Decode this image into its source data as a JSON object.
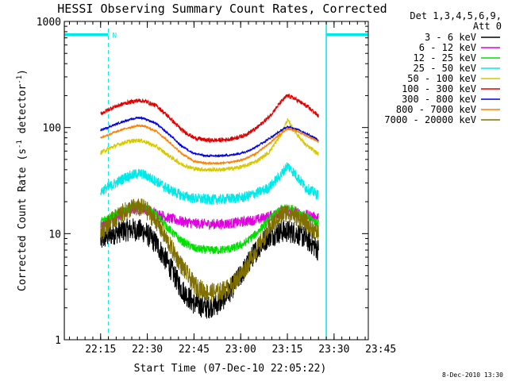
{
  "chart_data": {
    "type": "line",
    "title": "HESSI Observing Summary Count Rates, Corrected",
    "xlabel": "Start Time (07-Dec-10 22:05:22)",
    "ylabel_main": "Corrected Count Rate (s",
    "ylabel_sup1": "-1",
    "ylabel_mid": " detector",
    "ylabel_sup2": "-1",
    "ylabel_end": ")",
    "y_scale": "log",
    "xlim": [
      8.33,
      106
    ],
    "ylim": [
      1,
      1000
    ],
    "x_ticks": [
      {
        "value": 20,
        "label": "22:15"
      },
      {
        "value": 35,
        "label": "22:30"
      },
      {
        "value": 50,
        "label": "22:45"
      },
      {
        "value": 65,
        "label": "23:00"
      },
      {
        "value": 80,
        "label": "23:15"
      },
      {
        "value": 95,
        "label": "23:30"
      },
      {
        "value": 110,
        "label": "23:45"
      }
    ],
    "y_ticks": [
      {
        "value": 1,
        "label": "1"
      },
      {
        "value": 10,
        "label": "10"
      },
      {
        "value": 100,
        "label": "100"
      },
      {
        "value": 1000,
        "label": "1000"
      }
    ],
    "x_minor_step": 2.5,
    "legend_position": "right",
    "legend_header": [
      "Det 1,3,4,5,6,9,",
      "Att 0"
    ],
    "footer_date": "8-Dec-2010 13:30",
    "night_flag_label": "N",
    "series": [
      {
        "name": "3 - 6 keV",
        "color": "#000000",
        "noise": 0.11,
        "x": [
          20,
          22,
          26,
          30,
          34,
          38,
          42,
          46,
          50,
          54,
          58,
          62,
          66,
          70,
          74,
          78,
          80,
          82,
          84,
          86,
          88,
          90
        ],
        "y": [
          8.5,
          9.5,
          10.5,
          11,
          10.5,
          8,
          5,
          3,
          2.2,
          2,
          2.2,
          3,
          4.5,
          7,
          9.5,
          10.5,
          10.5,
          10.3,
          9.8,
          9,
          8,
          7
        ]
      },
      {
        "name": "6 - 12 keV",
        "color": "#e000e0",
        "noise": 0.05,
        "x": [
          20,
          24,
          30,
          34,
          38,
          42,
          46,
          50,
          54,
          58,
          62,
          66,
          70,
          74,
          78,
          80,
          82,
          86,
          90
        ],
        "y": [
          12,
          14,
          17,
          17,
          15.5,
          14,
          13,
          12.5,
          12.3,
          12.3,
          12.5,
          13,
          13.5,
          14.5,
          16,
          16.5,
          16,
          15,
          14
        ]
      },
      {
        "name": "12 - 25 keV",
        "color": "#00e000",
        "noise": 0.04,
        "x": [
          20,
          24,
          30,
          34,
          38,
          42,
          46,
          50,
          54,
          58,
          62,
          66,
          70,
          74,
          78,
          80,
          82,
          86,
          90
        ],
        "y": [
          13,
          15,
          18,
          18,
          15,
          11,
          8.5,
          7.3,
          7,
          7,
          7.2,
          8,
          10,
          13.5,
          17,
          17.5,
          17,
          14.5,
          12.5
        ]
      },
      {
        "name": "25 - 50 keV",
        "color": "#00e8e8",
        "noise": 0.05,
        "x": [
          20,
          24,
          28,
          32,
          34,
          38,
          42,
          46,
          50,
          54,
          58,
          62,
          66,
          70,
          74,
          78,
          80,
          82,
          84,
          86,
          88,
          90
        ],
        "y": [
          25,
          29,
          34,
          37,
          36,
          31,
          26,
          23,
          21.5,
          21,
          21,
          21.5,
          22,
          24,
          27,
          36,
          44,
          38,
          32,
          27,
          25,
          23
        ]
      },
      {
        "name": "50 - 100 keV",
        "color": "#d8c800",
        "noise": 0.02,
        "x": [
          20,
          24,
          28,
          32,
          34,
          38,
          42,
          46,
          50,
          54,
          58,
          62,
          66,
          70,
          74,
          78,
          80,
          82,
          84,
          86,
          88,
          90
        ],
        "y": [
          58,
          66,
          73,
          76,
          74,
          66,
          54,
          45,
          41,
          40,
          40,
          41,
          43,
          48,
          58,
          86,
          118,
          96,
          80,
          68,
          62,
          56
        ]
      },
      {
        "name": "100 - 300 keV",
        "color": "#e00000",
        "noise": 0.02,
        "x": [
          20,
          24,
          28,
          32,
          34,
          38,
          42,
          46,
          50,
          54,
          58,
          62,
          66,
          70,
          74,
          78,
          80,
          82,
          84,
          86,
          88,
          90
        ],
        "y": [
          135,
          155,
          170,
          180,
          178,
          160,
          125,
          95,
          80,
          76,
          76,
          78,
          84,
          98,
          125,
          175,
          200,
          190,
          175,
          160,
          145,
          128
        ]
      },
      {
        "name": "300 - 800 keV",
        "color": "#0000e0",
        "noise": 0.01,
        "x": [
          20,
          24,
          28,
          32,
          34,
          38,
          42,
          46,
          50,
          54,
          58,
          62,
          66,
          70,
          74,
          78,
          80,
          82,
          84,
          86,
          88,
          90
        ],
        "y": [
          94,
          105,
          116,
          124,
          122,
          108,
          86,
          67,
          57,
          54,
          54,
          55,
          58,
          66,
          78,
          94,
          101,
          99,
          94,
          88,
          82,
          76
        ]
      },
      {
        "name": "800 - 7000 keV",
        "color": "#ff7f00",
        "noise": 0.01,
        "x": [
          20,
          24,
          28,
          32,
          34,
          38,
          42,
          46,
          50,
          54,
          58,
          62,
          66,
          70,
          74,
          78,
          80,
          82,
          84,
          86,
          88,
          90
        ],
        "y": [
          80,
          89,
          98,
          104,
          103,
          92,
          73,
          57,
          48,
          46,
          46,
          47,
          50,
          57,
          70,
          88,
          97,
          95,
          90,
          84,
          79,
          74
        ]
      },
      {
        "name": "7000 - 20000 keV",
        "color": "#807000",
        "noise": 0.09,
        "x": [
          20,
          22,
          26,
          30,
          34,
          38,
          42,
          46,
          50,
          54,
          58,
          62,
          66,
          70,
          74,
          78,
          80,
          82,
          86,
          90
        ],
        "y": [
          10,
          12,
          15,
          17.5,
          17.5,
          13,
          8,
          5,
          3.3,
          2.8,
          2.8,
          3.2,
          4.5,
          7,
          11,
          15,
          16,
          15,
          12.5,
          10
        ]
      }
    ],
    "overlays": {
      "color": "#00e8e8",
      "solid_lines_x": [
        8.33,
        92.5
      ],
      "dashed_lines_x": [
        22.5,
        106
      ],
      "flag_segments": [
        [
          8.33,
          22.5
        ],
        [
          92.5,
          106
        ]
      ],
      "flag_level": 750
    }
  }
}
